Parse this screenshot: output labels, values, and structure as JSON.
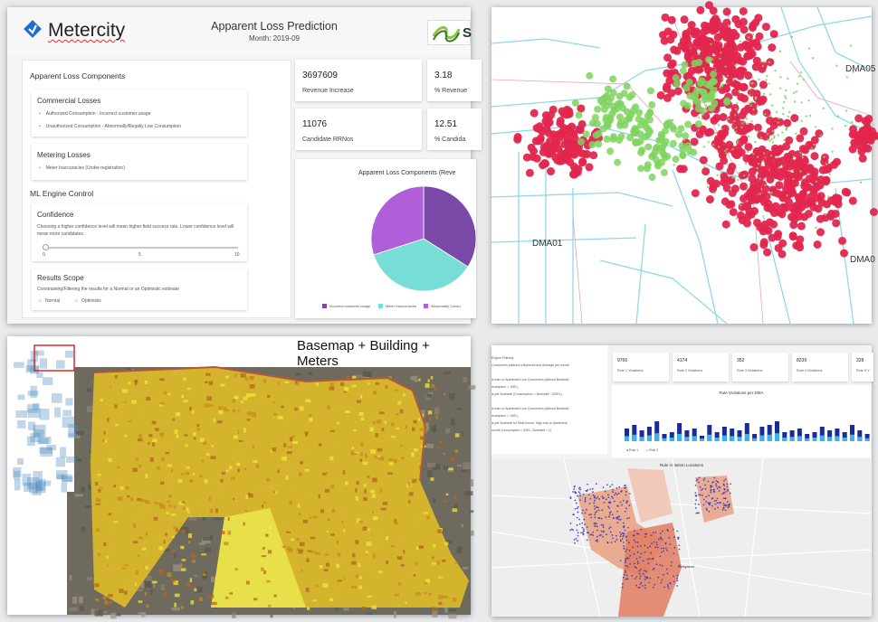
{
  "dashboard": {
    "brand": "Metercity",
    "title": "Apparent Loss Prediction",
    "month": "Month: 2019-09",
    "partner_letter": "S",
    "components_heading": "Apparent Loss Components",
    "commercial": {
      "heading": "Commercial Losses",
      "items": [
        "Authorized Consumption - Incorrect customer usage",
        "Unauthorized Consumption - Abnormally/Illegally Low Consumption"
      ]
    },
    "metering": {
      "heading": "Metering Losses",
      "items": [
        "Meter Inaccuracies (Under-registration)"
      ]
    },
    "ml_heading": "ML Engine Control",
    "confidence": {
      "heading": "Confidence",
      "description": "Choosing a higher confidence level will mean higher field success rate. Lower confidence level will mean more candidates.",
      "ticks": [
        "0",
        "5",
        "10"
      ],
      "value": 0
    },
    "scope": {
      "heading": "Results Scope",
      "description": "Constraining/Filtering the results for a Normal or an Optimistic estimate",
      "options": [
        "Normal",
        "Optimistic"
      ]
    },
    "metrics": [
      {
        "value": "3697609",
        "label": "Revenue Increase"
      },
      {
        "value": "3.18",
        "label": "% Revenue"
      },
      {
        "value": "11076",
        "label": "Candidate RRNos"
      },
      {
        "value": "12.51",
        "label": "% Candida"
      }
    ],
    "pie_title": "Apparent Loss Components (Reve",
    "pie_legend": [
      "Incorrect customer usage",
      "Meter Inaccuracies",
      "Abnormally Consu"
    ],
    "colors": {
      "purple": "#7b4aa8",
      "violet": "#b05fd8",
      "teal": "#77ddd6"
    }
  },
  "chart_data": {
    "type": "pie",
    "title": "Apparent Loss Components (Reve",
    "categories": [
      "Incorrect customer usage",
      "Meter Inaccuracies",
      "Abnormally Consu"
    ],
    "values": [
      34,
      36,
      30
    ]
  },
  "dma_map": {
    "labels": [
      "DMA05",
      "DMA01",
      "DMA0"
    ],
    "colors": {
      "red": "#e2264e",
      "green": "#7fd45f",
      "pipe": "#8ed8ea"
    }
  },
  "basemap": {
    "title": "Basemap + Building + Meters"
  },
  "rule_dashboard": {
    "side_lines": [
      "Engine Filtering",
      "Consumers (without a Borewell and Average per month",
      "",
      "is than or Apartment Low Consumers (without Borewell",
      "nsumption > 10KL)",
      "is per Borewell (Consumption > Borewell * 100KL)",
      "",
      "is than or Apartment Low Consumers (without Borewell",
      "nsumption < 10KL)",
      "is per Borewell for Multi house, High rise or Apartment",
      "month Consumption < 00KL, Borewell > 1)"
    ],
    "metrics": [
      {
        "value": "9766",
        "label": "Rule 1 Violations"
      },
      {
        "value": "4174",
        "label": "Rule 2 Violations"
      },
      {
        "value": "352",
        "label": "Rule 3 Violations"
      },
      {
        "value": "8239",
        "label": "Rule 4 Violations"
      },
      {
        "value": "328",
        "label": "Rule 5 V"
      }
    ],
    "chart_title": "Rule Violations per DMA",
    "legend": [
      "Rule 1",
      "Rule 2"
    ],
    "map_title": "Rule Violation Locations",
    "city_label": "Bengaluru"
  }
}
